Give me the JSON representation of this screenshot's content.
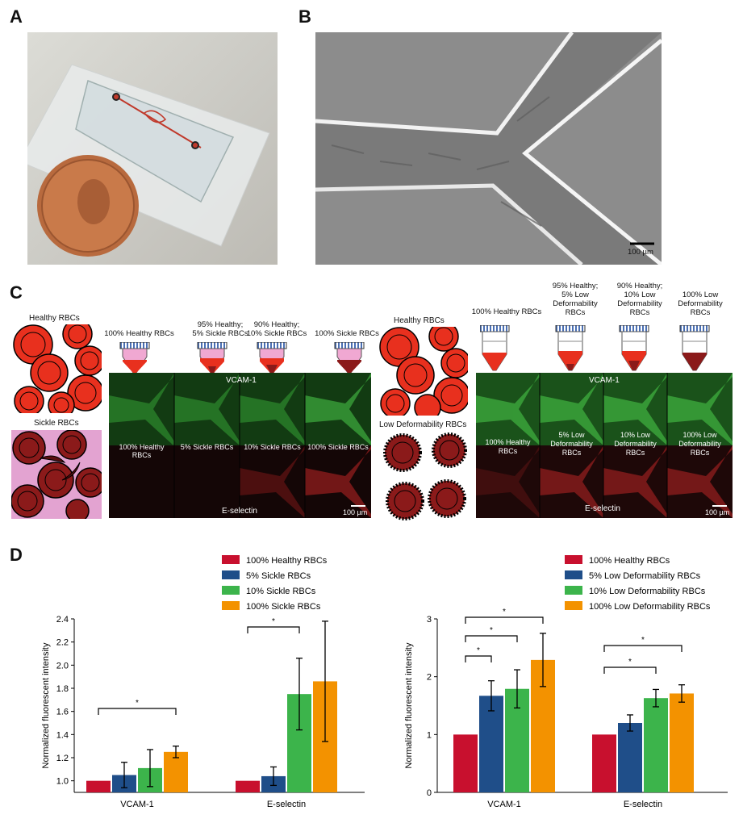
{
  "panels": {
    "a": "A",
    "b": "B",
    "c": "C",
    "d": "D"
  },
  "panel_b": {
    "scale_bar": "100 µm"
  },
  "panel_c_left": {
    "healthy_label": "Healthy RBCs",
    "sickle_label": "Sickle RBCs",
    "tubes": [
      "100% Healthy RBCs",
      "95% Healthy;\n5% Sickle RBCs",
      "90% Healthy;\n10% Sickle RBCs",
      "100% Sickle RBCs"
    ],
    "vcam": "VCAM-1",
    "eselectin": "E-selectin",
    "row_labels": [
      "100% Healthy RBCs",
      "5% Sickle RBCs",
      "10% Sickle RBCs",
      "100% Sickle RBCs"
    ],
    "scale_bar": "100 µm"
  },
  "panel_c_right": {
    "healthy_label": "Healthy RBCs",
    "lowdef_label": "Low Deformability RBCs",
    "tubes": [
      "100% Healthy RBCs",
      "95% Healthy;\n5% Low\nDeformability\nRBCs",
      "90% Healthy;\n10% Low\nDeformability\nRBCs",
      "100% Low\nDeformability\nRBCs"
    ],
    "vcam": "VCAM-1",
    "eselectin": "E-selectin",
    "row_labels": [
      "100% Healthy\nRBCs",
      "5% Low\nDeformability\nRBCs",
      "10% Low\nDeformability\nRBCs",
      "100% Low\nDeformability\nRBCs"
    ],
    "scale_bar": "100 µm"
  },
  "colors": {
    "healthy": "#c8102e",
    "five": "#1f4e89",
    "ten": "#3cb44b",
    "hundred": "#f39200"
  },
  "chart_data": [
    {
      "type": "bar",
      "categories": [
        "VCAM-1",
        "E-selectin"
      ],
      "ylabel": "Normalized fluorescent intensity",
      "ylim": [
        0.9,
        2.4
      ],
      "yticks": [
        "1.0",
        "1.2",
        "1.4",
        "1.6",
        "1.8",
        "2.0",
        "2.2",
        "2.4"
      ],
      "series": [
        {
          "name": "100% Healthy RBCs",
          "values": [
            1.0,
            1.0
          ],
          "err": [
            0,
            0
          ]
        },
        {
          "name": "5% Sickle RBCs",
          "values": [
            1.05,
            1.04
          ],
          "err": [
            0.11,
            0.08
          ]
        },
        {
          "name": "10% Sickle RBCs",
          "values": [
            1.11,
            1.75
          ],
          "err": [
            0.16,
            0.31
          ]
        },
        {
          "name": "100% Sickle RBCs",
          "values": [
            1.25,
            1.86
          ],
          "err": [
            0.05,
            0.52
          ]
        }
      ],
      "significance": [
        {
          "category": "VCAM-1",
          "from": 0,
          "to": 3,
          "mark": "*"
        },
        {
          "category": "E-selectin",
          "from": 0,
          "to": 2,
          "mark": "*"
        }
      ]
    },
    {
      "type": "bar",
      "categories": [
        "VCAM-1",
        "E-selectin"
      ],
      "ylabel": "Normalized fluorescent intensity",
      "ylim": [
        0,
        3
      ],
      "yticks": [
        "0",
        "1",
        "2",
        "3"
      ],
      "series": [
        {
          "name": "100% Healthy RBCs",
          "values": [
            1.0,
            1.0
          ],
          "err": [
            0,
            0
          ]
        },
        {
          "name": "5% Low Deformability RBCs",
          "values": [
            1.67,
            1.2
          ],
          "err": [
            0.26,
            0.14
          ]
        },
        {
          "name": "10% Low Deformability RBCs",
          "values": [
            1.79,
            1.63
          ],
          "err": [
            0.33,
            0.15
          ]
        },
        {
          "name": "100% Low Deformability RBCs",
          "values": [
            2.29,
            1.71
          ],
          "err": [
            0.46,
            0.15
          ]
        }
      ],
      "significance": [
        {
          "category": "VCAM-1",
          "from": 0,
          "to": 1,
          "mark": "*"
        },
        {
          "category": "VCAM-1",
          "from": 0,
          "to": 2,
          "mark": "*"
        },
        {
          "category": "VCAM-1",
          "from": 0,
          "to": 3,
          "mark": "*"
        },
        {
          "category": "E-selectin",
          "from": 0,
          "to": 2,
          "mark": "*"
        },
        {
          "category": "E-selectin",
          "from": 0,
          "to": 3,
          "mark": "*"
        }
      ]
    }
  ]
}
